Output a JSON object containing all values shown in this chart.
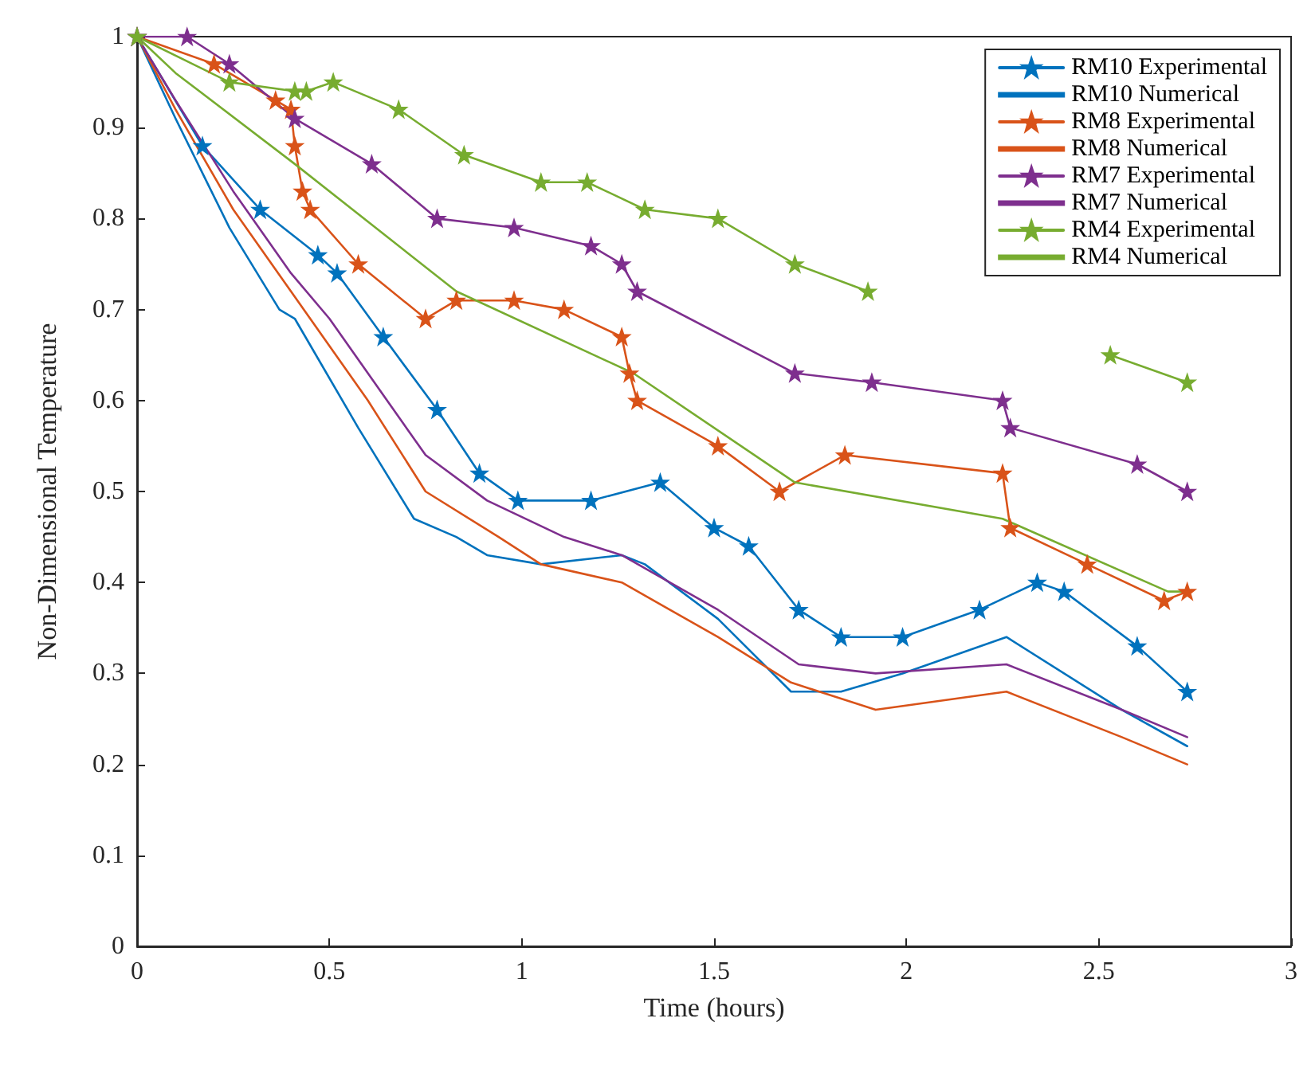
{
  "chart_data": {
    "type": "line",
    "xlabel": "Time (hours)",
    "ylabel": "Non-Dimensional Temperature",
    "xlim": [
      0,
      3
    ],
    "xticks": [
      0,
      0.5,
      1,
      1.5,
      2,
      2.5,
      3
    ],
    "ylim": [
      0,
      1
    ],
    "yticks": [
      0,
      0.1,
      0.2,
      0.3,
      0.4,
      0.5,
      0.6,
      0.7,
      0.8,
      0.9,
      1
    ],
    "grid": false,
    "legend": "top right",
    "series": [
      {
        "name": "RM10 Experimental",
        "color": "#0072bd",
        "marker": "star",
        "x": [
          0,
          0.17,
          0.32,
          0.47,
          0.52,
          0.64,
          0.78,
          0.89,
          0.99,
          1.18,
          1.36,
          1.5,
          1.59,
          1.72,
          1.83,
          1.99,
          2.19,
          2.34,
          2.41,
          2.6,
          2.73
        ],
        "values": [
          1,
          0.88,
          0.81,
          0.76,
          0.74,
          0.67,
          0.59,
          0.52,
          0.49,
          0.49,
          0.51,
          0.46,
          0.44,
          0.37,
          0.34,
          0.34,
          0.37,
          0.4,
          0.39,
          0.33,
          0.28
        ]
      },
      {
        "name": "RM10 Numerical",
        "color": "#0072bd",
        "marker": "none",
        "x": [
          0,
          0.1,
          0.24,
          0.37,
          0.41,
          0.575,
          0.72,
          0.83,
          0.91,
          1.05,
          1.26,
          1.32,
          1.51,
          1.7,
          1.83,
          1.99,
          2.26,
          2.56,
          2.73
        ],
        "values": [
          1,
          0.91,
          0.79,
          0.7,
          0.69,
          0.57,
          0.47,
          0.45,
          0.43,
          0.42,
          0.43,
          0.42,
          0.36,
          0.28,
          0.28,
          0.3,
          0.34,
          0.26,
          0.22
        ]
      },
      {
        "name": "RM8 Experimental",
        "color": "#d95319",
        "marker": "star",
        "x": [
          0,
          0.2,
          0.36,
          0.4,
          0.41,
          0.43,
          0.45,
          0.575,
          0.75,
          0.83,
          0.98,
          1.11,
          1.26,
          1.28,
          1.3,
          1.51,
          1.67,
          1.84,
          2.25,
          2.27,
          2.47,
          2.67,
          2.73
        ],
        "values": [
          1,
          0.97,
          0.93,
          0.92,
          0.88,
          0.83,
          0.81,
          0.75,
          0.69,
          0.71,
          0.71,
          0.7,
          0.67,
          0.63,
          0.6,
          0.55,
          0.5,
          0.54,
          0.52,
          0.46,
          0.42,
          0.38,
          0.39
        ]
      },
      {
        "name": "RM8 Numerical",
        "color": "#d95319",
        "marker": "none",
        "x": [
          0,
          0.1,
          0.25,
          0.4,
          0.5,
          0.6,
          0.75,
          0.94,
          1.05,
          1.26,
          1.51,
          1.7,
          1.92,
          2.26,
          2.56,
          2.73
        ],
        "values": [
          1,
          0.92,
          0.81,
          0.72,
          0.66,
          0.6,
          0.5,
          0.45,
          0.42,
          0.4,
          0.34,
          0.29,
          0.26,
          0.28,
          0.23,
          0.2
        ]
      },
      {
        "name": "RM7 Experimental",
        "color": "#7e2f8e",
        "marker": "star",
        "x": [
          0,
          0.13,
          0.24,
          0.41,
          0.61,
          0.78,
          0.98,
          1.18,
          1.26,
          1.3,
          1.71,
          1.91,
          2.25,
          2.27,
          2.6,
          2.73
        ],
        "values": [
          1,
          1,
          0.97,
          0.91,
          0.86,
          0.8,
          0.79,
          0.77,
          0.75,
          0.72,
          0.63,
          0.62,
          0.6,
          0.57,
          0.53,
          0.5
        ]
      },
      {
        "name": "RM7 Numerical",
        "color": "#7e2f8e",
        "marker": "none",
        "x": [
          0,
          0.1,
          0.25,
          0.4,
          0.5,
          0.6,
          0.75,
          0.91,
          1.11,
          1.26,
          1.51,
          1.72,
          1.92,
          2.26,
          2.56,
          2.73
        ],
        "values": [
          1,
          0.93,
          0.83,
          0.74,
          0.69,
          0.63,
          0.54,
          0.49,
          0.45,
          0.43,
          0.37,
          0.31,
          0.3,
          0.31,
          0.26,
          0.23
        ]
      },
      {
        "name": "RM4 Experimental",
        "color": "#77ac30",
        "marker": "star",
        "x": [
          0,
          0.24,
          0.41,
          0.44,
          0.51,
          0.68,
          0.85,
          1.05,
          1.17,
          1.32,
          1.51,
          1.71,
          1.9,
          2.2,
          2.53,
          2.73
        ],
        "values": [
          1,
          0.95,
          0.94,
          0.94,
          0.95,
          0.92,
          0.87,
          0.84,
          0.84,
          0.81,
          0.8,
          0.75,
          0.72,
          null,
          0.65,
          0.62
        ]
      },
      {
        "name": "RM4 Numerical",
        "color": "#77ac30",
        "marker": "none",
        "x": [
          0,
          0.1,
          0.41,
          0.83,
          1.29,
          1.71,
          2.25,
          2.68,
          2.73
        ],
        "values": [
          1,
          0.96,
          0.86,
          0.72,
          0.63,
          0.51,
          0.47,
          0.39,
          0.39
        ]
      }
    ]
  }
}
